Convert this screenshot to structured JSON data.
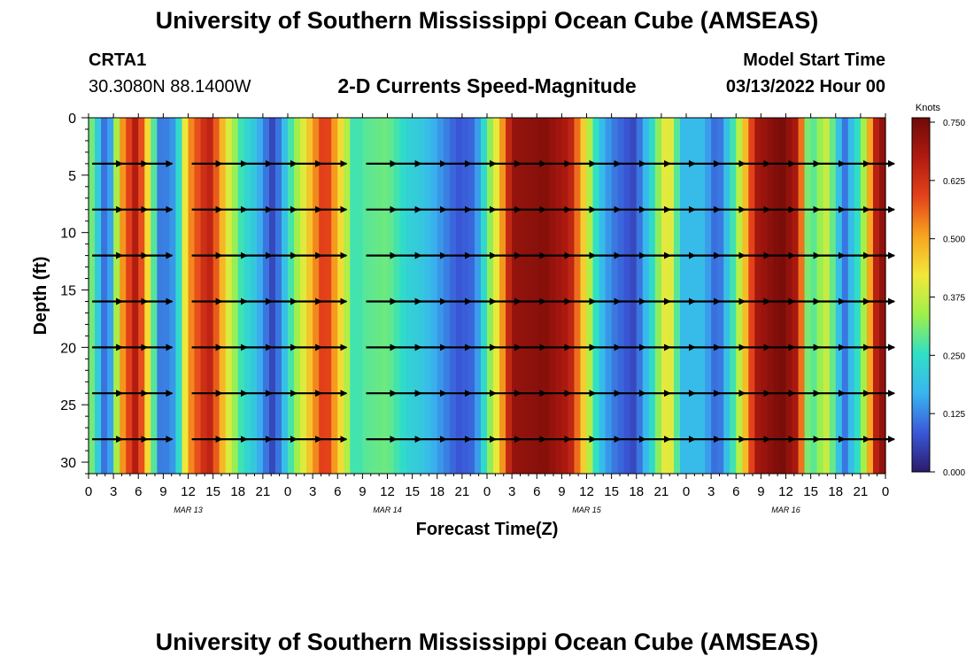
{
  "header": {
    "title": "University of Southern Mississippi Ocean Cube (AMSEAS)",
    "station_id": "CRTA1",
    "station_coords": "30.3080N  88.1400W",
    "plot_title": "2-D Currents Speed-Magnitude",
    "model_start_label": "Model Start Time",
    "model_start_value": "03/13/2022 Hour 00"
  },
  "footer": {
    "title": "University of Southern Mississippi Ocean Cube (AMSEAS)"
  },
  "colors": {
    "palette": [
      "#2c1a6b",
      "#3a58d8",
      "#39b5f0",
      "#2fe0c4",
      "#9ff04a",
      "#f2e83a",
      "#f7a41e",
      "#e4421a",
      "#b01a10",
      "#6e0a08"
    ]
  },
  "chart_data": {
    "type": "heatmap",
    "title": "2-D Currents Speed-Magnitude",
    "xlabel": "Forecast Time(Z)",
    "ylabel": "Depth (ft)",
    "x_ticks": [
      "0",
      "3",
      "6",
      "9",
      "12",
      "15",
      "18",
      "21",
      "0",
      "3",
      "6",
      "9",
      "12",
      "15",
      "18",
      "21",
      "0",
      "3",
      "6",
      "9",
      "12",
      "15",
      "18",
      "21",
      "0",
      "3",
      "6",
      "9",
      "12",
      "15",
      "18",
      "21",
      "0"
    ],
    "x_range_hours": [
      0,
      96
    ],
    "date_labels": [
      {
        "label": "MAR 13",
        "hour": 12
      },
      {
        "label": "MAR 14",
        "hour": 36
      },
      {
        "label": "MAR 15",
        "hour": 60
      },
      {
        "label": "MAR 16",
        "hour": 84
      }
    ],
    "y_ticks": [
      "0",
      "5",
      "10",
      "15",
      "20",
      "25",
      "30"
    ],
    "y_range_ft": [
      0,
      31
    ],
    "colorbar": {
      "unit": "Knots",
      "min": 0.0,
      "max": 0.75,
      "tick_labels": [
        "0.750",
        "0.625",
        "0.500",
        "0.375",
        "0.250",
        "0.125",
        "0.000"
      ]
    },
    "speed_profile_knots": [
      {
        "hour": 0,
        "speed": 0.3
      },
      {
        "hour": 0.8,
        "speed": 0.3
      },
      {
        "hour": 1.5,
        "speed": 0.1
      },
      {
        "hour": 2.5,
        "speed": 0.12
      },
      {
        "hour": 4,
        "speed": 0.5
      },
      {
        "hour": 5.8,
        "speed": 0.68
      },
      {
        "hour": 7.3,
        "speed": 0.4
      },
      {
        "hour": 8.7,
        "speed": 0.1
      },
      {
        "hour": 10.5,
        "speed": 0.15
      },
      {
        "hour": 12,
        "speed": 0.5
      },
      {
        "hour": 14.5,
        "speed": 0.66
      },
      {
        "hour": 16.8,
        "speed": 0.4
      },
      {
        "hour": 18.5,
        "speed": 0.25
      },
      {
        "hour": 20,
        "speed": 0.2
      },
      {
        "hour": 22.3,
        "speed": 0.05
      },
      {
        "hour": 24.5,
        "speed": 0.28
      },
      {
        "hour": 26.5,
        "speed": 0.45
      },
      {
        "hour": 28.5,
        "speed": 0.62
      },
      {
        "hour": 30.7,
        "speed": 0.4
      },
      {
        "hour": 32,
        "speed": 0.25
      },
      {
        "hour": 33.3,
        "speed": 0.28
      },
      {
        "hour": 36,
        "speed": 0.3
      },
      {
        "hour": 38.5,
        "speed": 0.22
      },
      {
        "hour": 40.3,
        "speed": 0.2
      },
      {
        "hour": 42,
        "speed": 0.15
      },
      {
        "hour": 44.5,
        "speed": 0.08
      },
      {
        "hour": 46.5,
        "speed": 0.1
      },
      {
        "hour": 48,
        "speed": 0.28
      },
      {
        "hour": 49.5,
        "speed": 0.45
      },
      {
        "hour": 51,
        "speed": 0.7
      },
      {
        "hour": 55,
        "speed": 0.72
      },
      {
        "hour": 58,
        "speed": 0.66
      },
      {
        "hour": 60,
        "speed": 0.4
      },
      {
        "hour": 61.5,
        "speed": 0.2
      },
      {
        "hour": 63,
        "speed": 0.12
      },
      {
        "hour": 65.8,
        "speed": 0.06
      },
      {
        "hour": 68,
        "speed": 0.25
      },
      {
        "hour": 69.8,
        "speed": 0.45
      },
      {
        "hour": 71.5,
        "speed": 0.18
      },
      {
        "hour": 74,
        "speed": 0.18
      },
      {
        "hour": 75.8,
        "speed": 0.08
      },
      {
        "hour": 78,
        "speed": 0.3
      },
      {
        "hour": 80.5,
        "speed": 0.68
      },
      {
        "hour": 83.5,
        "speed": 0.74
      },
      {
        "hour": 85.5,
        "speed": 0.66
      },
      {
        "hour": 86.8,
        "speed": 0.25
      },
      {
        "hour": 89,
        "speed": 0.38
      },
      {
        "hour": 91,
        "speed": 0.1
      },
      {
        "hour": 93.2,
        "speed": 0.3
      },
      {
        "hour": 95,
        "speed": 0.68
      },
      {
        "hour": 96,
        "speed": 0.72
      }
    ],
    "vector_depths_ft": [
      4,
      8,
      12,
      16,
      20,
      24,
      28
    ],
    "vector_hours": [
      3,
      6,
      9,
      15,
      18,
      21,
      24,
      27,
      30,
      36,
      39,
      42,
      45,
      48,
      51,
      54,
      57,
      60,
      63,
      66,
      69,
      72,
      75,
      78,
      81,
      84,
      87,
      90,
      93,
      96
    ]
  }
}
